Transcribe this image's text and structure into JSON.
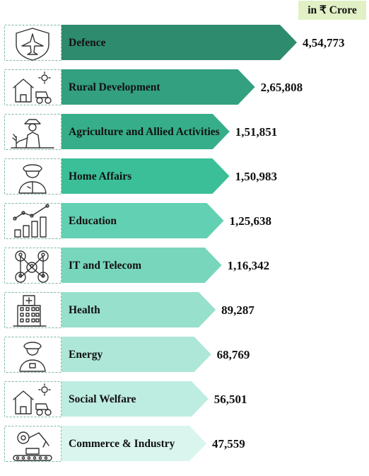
{
  "unit_label": "in ₹ Crore",
  "chart_data": {
    "type": "bar",
    "orientation": "horizontal",
    "unit": "₹ Crore",
    "categories": [
      "Defence",
      "Rural Development",
      "Agriculture and Allied Activities",
      "Home Affairs",
      "Education",
      "IT and Telecom",
      "Health",
      "Energy",
      "Social Welfare",
      "Commerce & Industry"
    ],
    "values": [
      454773,
      265808,
      151851,
      150983,
      125638,
      116342,
      89287,
      68769,
      56501,
      47559
    ],
    "value_labels": [
      "4,54,773",
      "2,65,808",
      "1,51,851",
      "1,50,983",
      "1,25,638",
      "1,16,342",
      "89,287",
      "68,769",
      "56,501",
      "47,559"
    ],
    "icons": [
      "fighter-jet-shield-icon",
      "farm-house-tractor-icon",
      "farmer-plant-icon",
      "police-officer-icon",
      "bar-chart-growth-icon",
      "network-people-icon",
      "hospital-building-icon",
      "officer-icon",
      "farm-house-tractor-icon",
      "factory-robot-arm-icon"
    ],
    "colors": [
      "#2e8b6e",
      "#33a07f",
      "#36ae89",
      "#3bbf98",
      "#62d0b2",
      "#78d6bd",
      "#97e0cc",
      "#aee7d7",
      "#bdece0",
      "#d9f5ee"
    ]
  }
}
